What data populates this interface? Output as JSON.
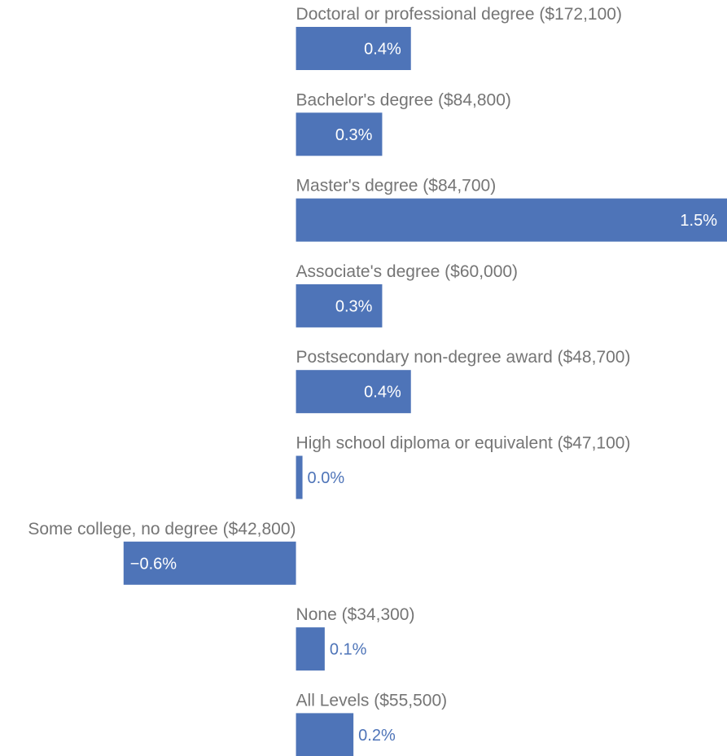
{
  "chart_data": {
    "type": "bar",
    "orientation": "horizontal",
    "categories": [
      "Doctoral or professional degree ($172,100)",
      "Bachelor's degree ($84,800)",
      "Master's degree ($84,700)",
      "Associate's degree ($60,000)",
      "Postsecondary non-degree award ($48,700)",
      "High school diploma or equivalent ($47,100)",
      "Some college, no degree ($42,800)",
      "None ($34,300)",
      "All Levels ($55,500)"
    ],
    "values": [
      0.4,
      0.3,
      1.5,
      0.3,
      0.4,
      0.0,
      -0.6,
      0.1,
      0.2
    ],
    "value_labels": [
      "0.4%",
      "0.3%",
      "1.5%",
      "0.3%",
      "0.4%",
      "0.0%",
      "−0.6%",
      "0.1%",
      "0.2%"
    ],
    "xlim": [
      -1.03,
      1.5
    ],
    "unit": "%",
    "bar_color": "#4e74b8",
    "grid": false,
    "legend": "none"
  }
}
